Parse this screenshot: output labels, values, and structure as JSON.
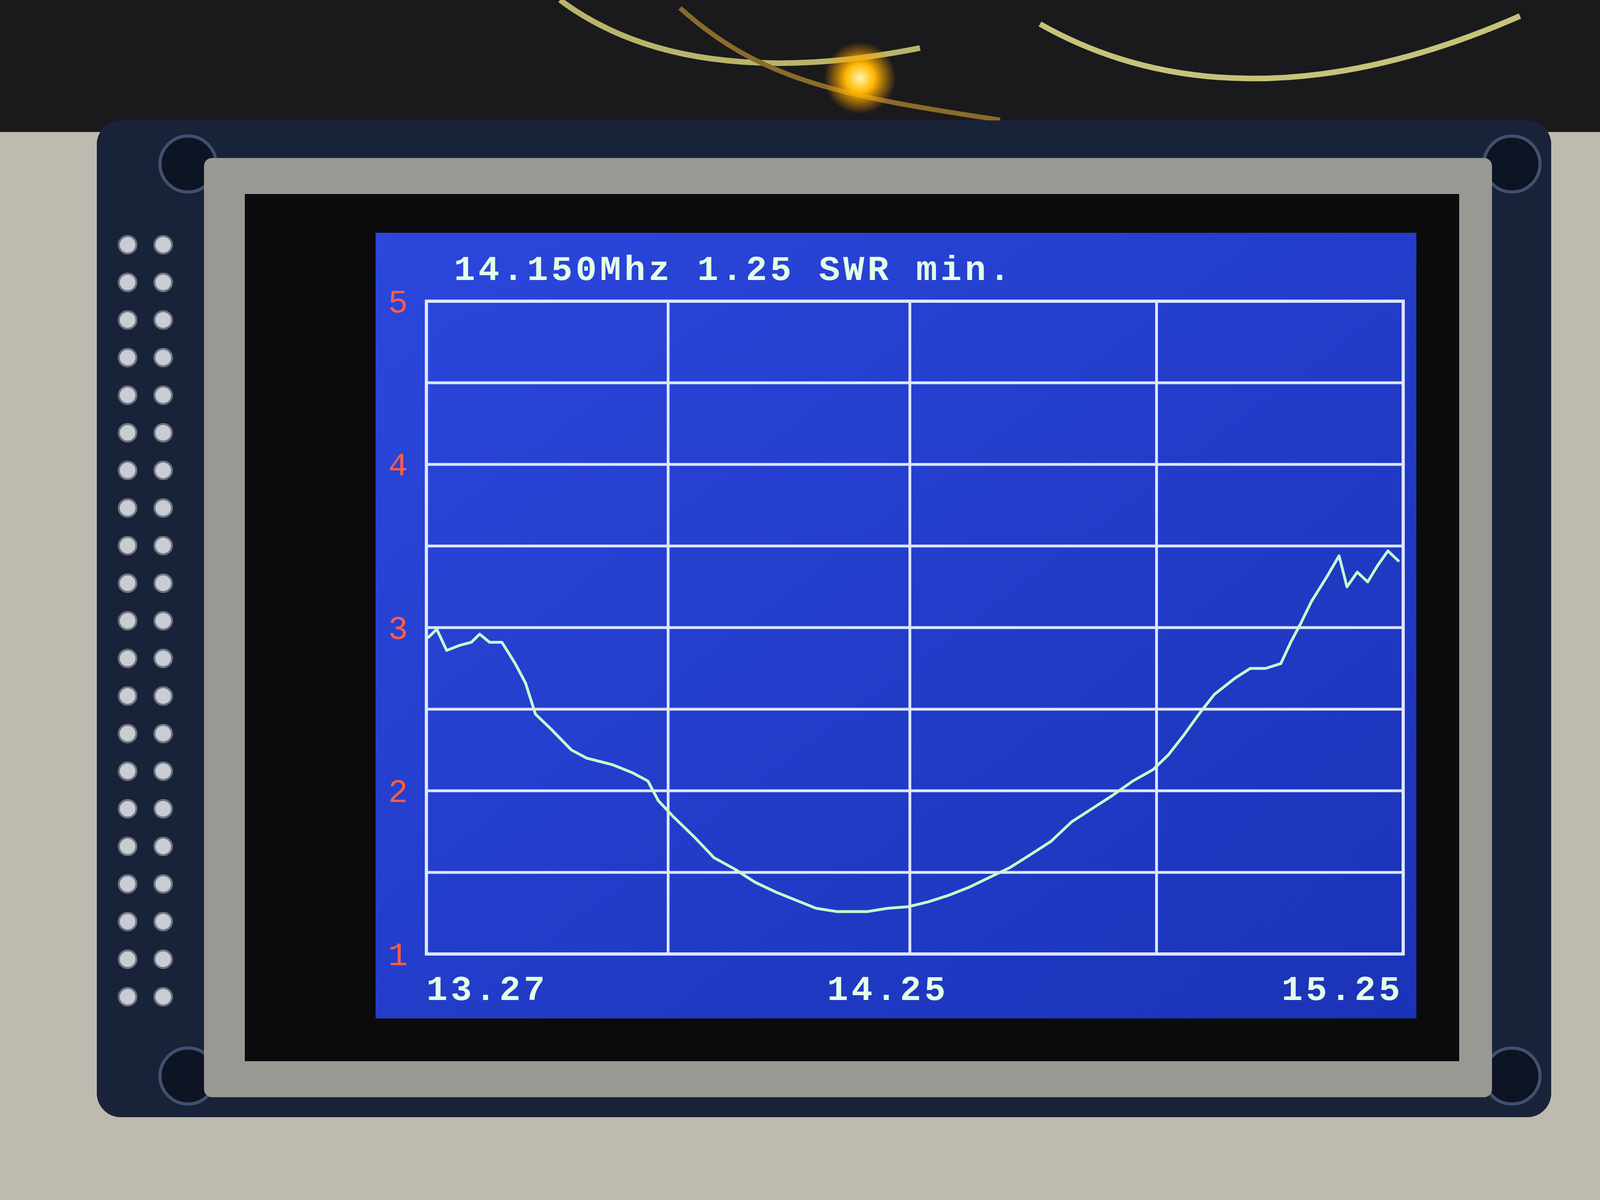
{
  "chart_data": {
    "type": "line",
    "title": "14.150Mhz 1.25 SWR min.",
    "x": [
      13.274,
      13.291,
      13.311,
      13.336,
      13.361,
      13.378,
      13.398,
      13.423,
      13.45,
      13.471,
      13.491,
      13.522,
      13.564,
      13.595,
      13.647,
      13.688,
      13.719,
      13.74,
      13.771,
      13.812,
      13.853,
      13.895,
      13.936,
      13.978,
      14.019,
      14.06,
      14.102,
      14.164,
      14.205,
      14.247,
      14.288,
      14.329,
      14.371,
      14.412,
      14.453,
      14.495,
      14.536,
      14.578,
      14.619,
      14.66,
      14.702,
      14.743,
      14.774,
      14.805,
      14.836,
      14.867,
      14.909,
      14.94,
      14.971,
      15.002,
      15.022,
      15.043,
      15.064,
      15.095,
      15.12,
      15.136,
      15.157,
      15.178,
      15.198,
      15.219,
      15.24
    ],
    "values": [
      2.94,
      2.99,
      2.86,
      2.89,
      2.91,
      2.96,
      2.91,
      2.91,
      2.78,
      2.66,
      2.47,
      2.38,
      2.25,
      2.2,
      2.16,
      2.11,
      2.06,
      1.94,
      1.84,
      1.72,
      1.59,
      1.52,
      1.44,
      1.38,
      1.33,
      1.28,
      1.26,
      1.26,
      1.28,
      1.29,
      1.32,
      1.36,
      1.41,
      1.47,
      1.53,
      1.61,
      1.69,
      1.81,
      1.89,
      1.97,
      2.06,
      2.13,
      2.22,
      2.34,
      2.47,
      2.59,
      2.69,
      2.75,
      2.75,
      2.78,
      2.91,
      3.03,
      3.16,
      3.31,
      3.44,
      3.25,
      3.34,
      3.28,
      3.38,
      3.47,
      3.41
    ],
    "color": "#c6ffd0",
    "xlim": [
      13.27,
      15.25
    ],
    "xticks": [
      13.27,
      14.25,
      15.25
    ],
    "ylim": [
      1,
      5
    ],
    "yticks": [
      1,
      2,
      3,
      4,
      5
    ],
    "grid": true
  }
}
